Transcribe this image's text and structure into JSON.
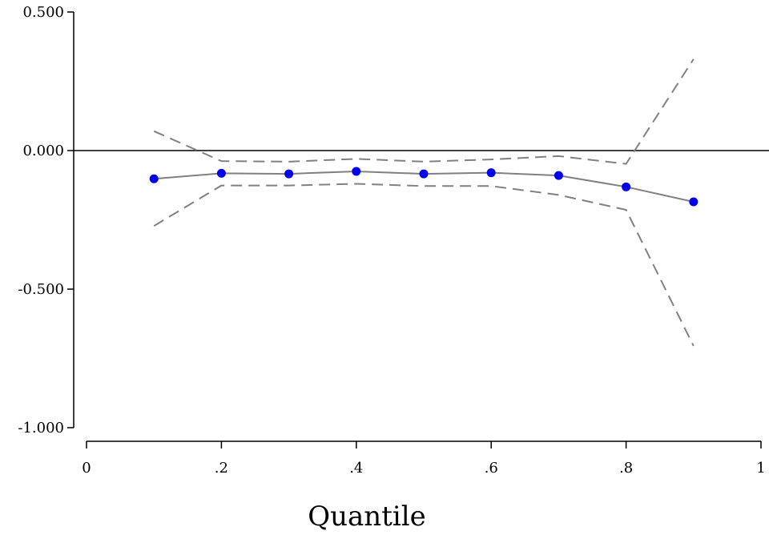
{
  "chart_data": {
    "type": "line",
    "xlabel": "Quantile",
    "ylabel": "",
    "xlim": [
      0,
      1
    ],
    "ylim": [
      -1.0,
      0.5
    ],
    "x_ticks": [
      {
        "value": 0,
        "label": "0"
      },
      {
        "value": 0.2,
        "label": ".2"
      },
      {
        "value": 0.4,
        "label": ".4"
      },
      {
        "value": 0.6,
        "label": ".6"
      },
      {
        "value": 0.8,
        "label": ".8"
      },
      {
        "value": 1,
        "label": "1"
      }
    ],
    "y_ticks": [
      {
        "value": 0.5,
        "label": "0.500"
      },
      {
        "value": 0.0,
        "label": "0.000"
      },
      {
        "value": -0.5,
        "label": "-0.500"
      },
      {
        "value": -1.0,
        "label": "-1.000"
      }
    ],
    "reference_line": 0,
    "grid": false,
    "x": [
      0.1,
      0.2,
      0.3,
      0.4,
      0.5,
      0.6,
      0.7,
      0.8,
      0.9
    ],
    "series": [
      {
        "role": "estimate",
        "color": "#808080",
        "marker_color": "#0000ee",
        "values": [
          -0.102,
          -0.082,
          -0.084,
          -0.075,
          -0.084,
          -0.08,
          -0.09,
          -0.131,
          -0.185
        ]
      },
      {
        "role": "upper-bound",
        "color": "#808080",
        "dashed": true,
        "values": [
          0.07,
          -0.038,
          -0.04,
          -0.03,
          -0.04,
          -0.032,
          -0.02,
          -0.048,
          0.33
        ]
      },
      {
        "role": "lower-bound",
        "color": "#808080",
        "dashed": true,
        "values": [
          -0.272,
          -0.126,
          -0.126,
          -0.12,
          -0.128,
          -0.128,
          -0.16,
          -0.214,
          -0.705
        ]
      }
    ]
  }
}
